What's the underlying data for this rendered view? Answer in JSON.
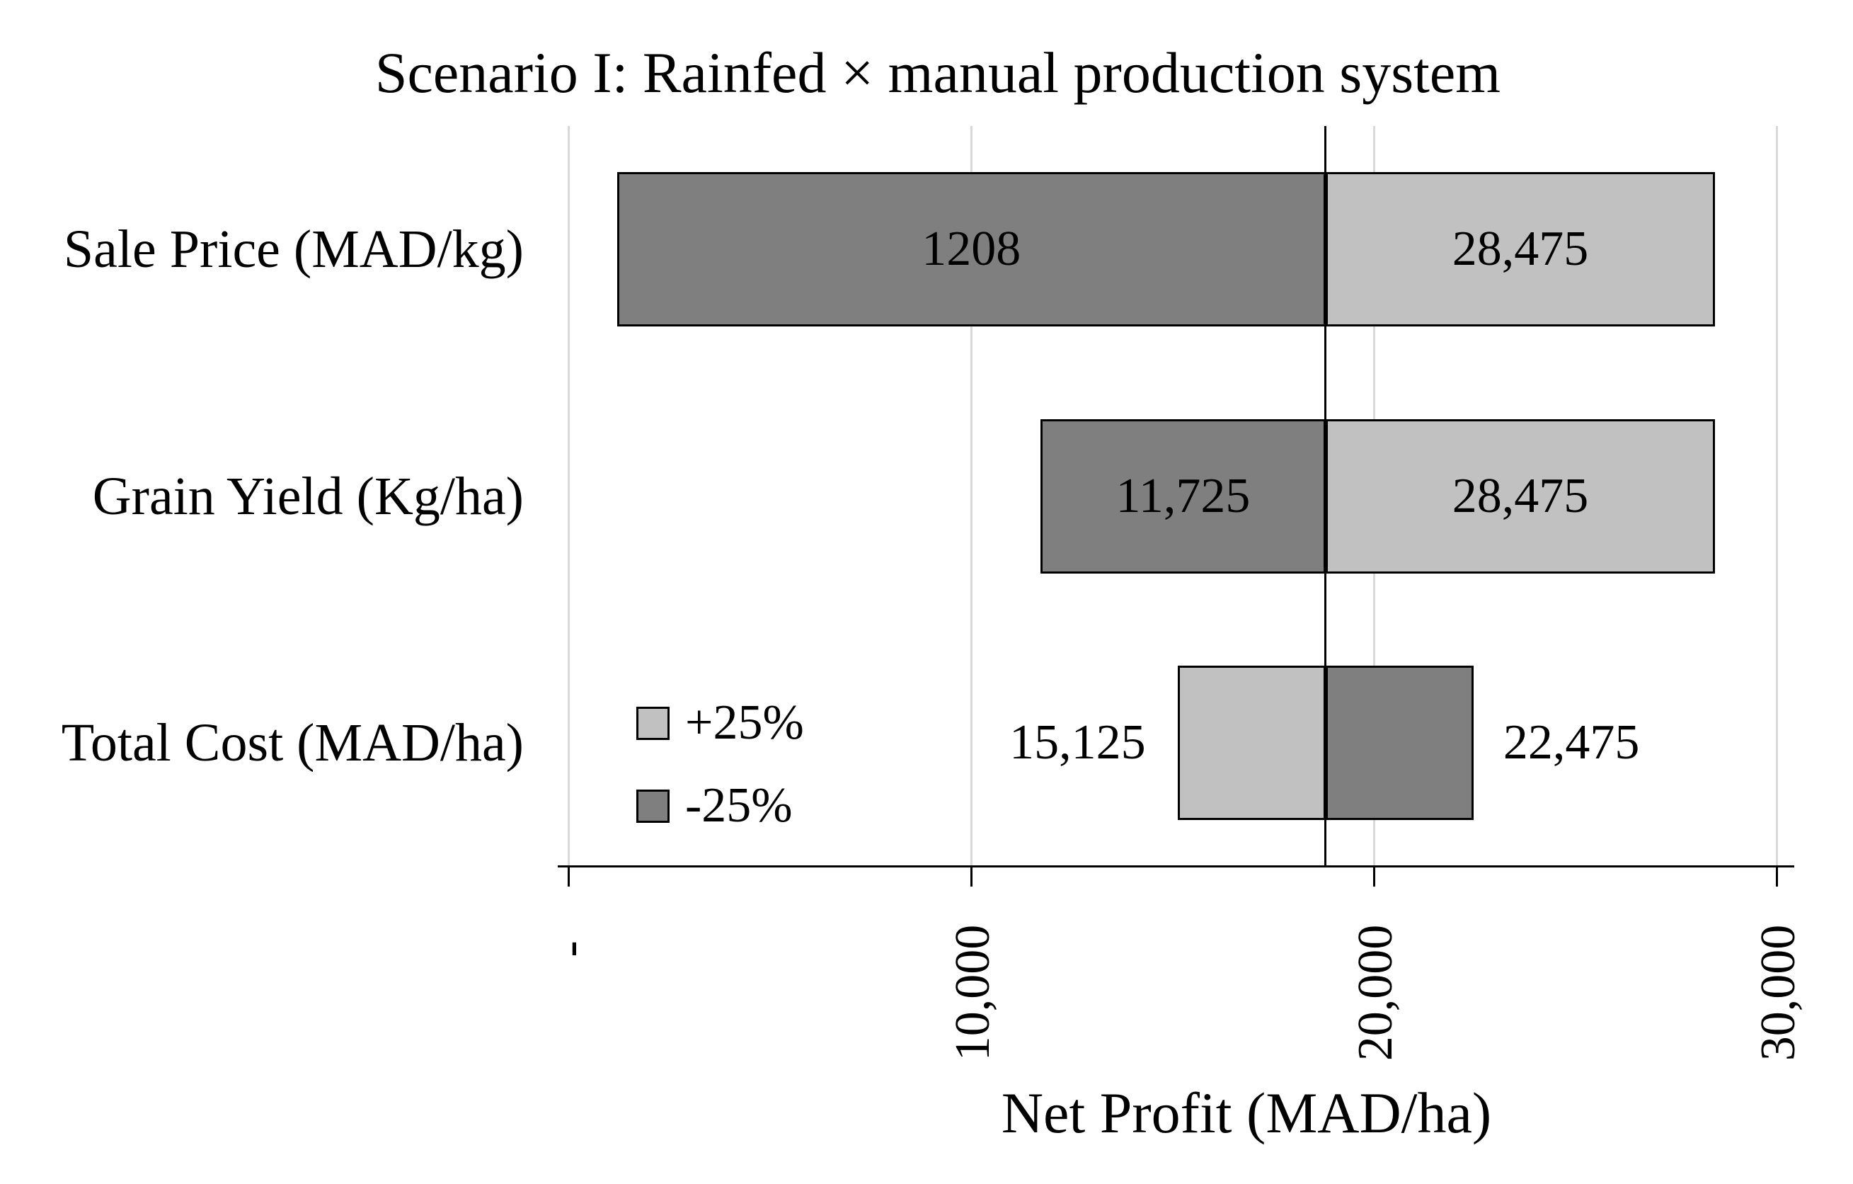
{
  "title": "Scenario I: Rainfed × manual production system",
  "colors": {
    "plus25": "#c1c1c1",
    "minus25": "#7f7f7f",
    "gridline": "#d9d9d9",
    "axis": "#000000",
    "background": "#ffffff"
  },
  "chart_data": {
    "type": "bar",
    "subtype": "tornado",
    "orientation": "horizontal",
    "title": "Scenario I: Rainfed × manual production system",
    "xlabel": "Net Profit (MAD/ha)",
    "ylabel": "",
    "xlim": [
      0,
      30000
    ],
    "xticks": [
      {
        "value": 0,
        "label": "-"
      },
      {
        "value": 10000,
        "label": "10,000"
      },
      {
        "value": 20000,
        "label": "20,000"
      },
      {
        "value": 30000,
        "label": "30,000"
      }
    ],
    "tick_label_rotation": -90,
    "gridlines": true,
    "baseline_value": 18800,
    "categories": [
      "Sale Price (MAD/kg)",
      "Grain Yield (Kg/ha)",
      "Total Cost (MAD/ha)"
    ],
    "series": [
      {
        "name": "+25%",
        "color": "#c1c1c1"
      },
      {
        "name": "-25%",
        "color": "#7f7f7f"
      }
    ],
    "rows": [
      {
        "category": "Sale Price (MAD/kg)",
        "segments": [
          {
            "series": "-25%",
            "from": 1208,
            "to": 18800,
            "label": "1208",
            "label_position": "inside"
          },
          {
            "series": "+25%",
            "from": 18800,
            "to": 28475,
            "label": "28,475",
            "label_position": "inside"
          }
        ]
      },
      {
        "category": "Grain Yield (Kg/ha)",
        "segments": [
          {
            "series": "-25%",
            "from": 11725,
            "to": 18800,
            "label": "11,725",
            "label_position": "inside"
          },
          {
            "series": "+25%",
            "from": 18800,
            "to": 28475,
            "label": "28,475",
            "label_position": "inside"
          }
        ]
      },
      {
        "category": "Total Cost (MAD/ha)",
        "segments": [
          {
            "series": "+25%",
            "from": 15125,
            "to": 18800,
            "label": "15,125",
            "label_position": "outside-left"
          },
          {
            "series": "-25%",
            "from": 18800,
            "to": 22475,
            "label": "22,475",
            "label_position": "outside-right"
          }
        ]
      }
    ],
    "legend": {
      "position": "inside-left-of-bottom-row",
      "items": [
        {
          "label": "+25%",
          "color": "#c1c1c1"
        },
        {
          "label": "-25%",
          "color": "#7f7f7f"
        }
      ]
    }
  }
}
